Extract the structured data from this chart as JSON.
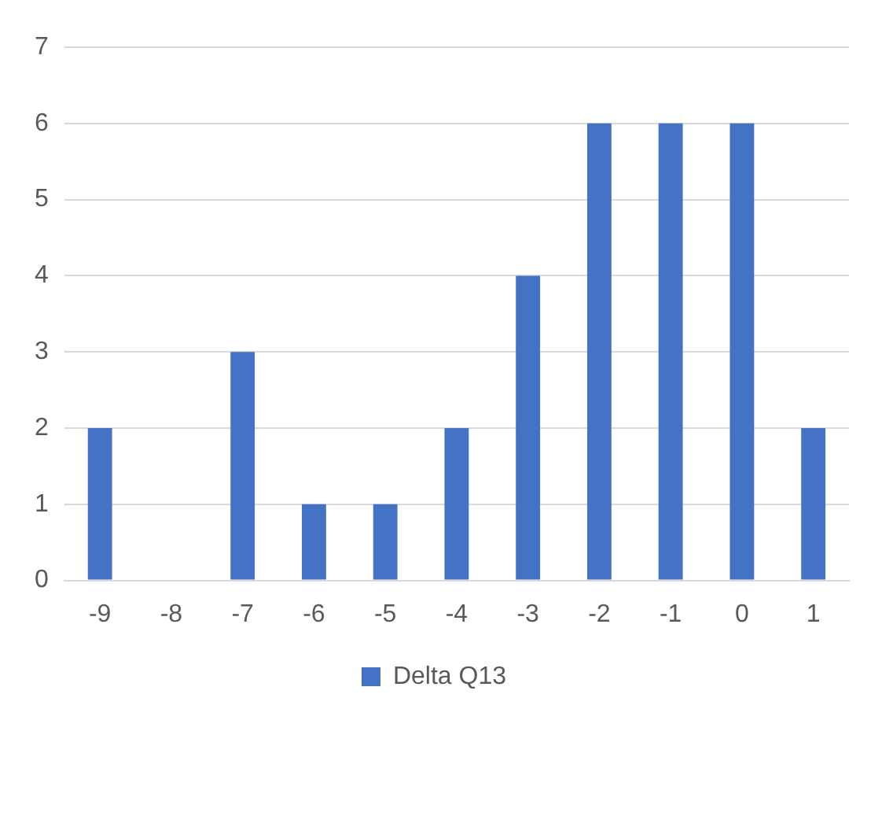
{
  "chart_data": {
    "type": "bar",
    "categories": [
      "-9",
      "-8",
      "-7",
      "-6",
      "-5",
      "-4",
      "-3",
      "-2",
      "-1",
      "0",
      "1"
    ],
    "series": [
      {
        "name": "Delta Q13",
        "color": "#4472c4",
        "values": [
          2,
          0,
          3,
          1,
          1,
          2,
          4,
          6,
          6,
          6,
          2
        ]
      }
    ],
    "ylim": [
      0,
      7
    ],
    "yticks": [
      0,
      1,
      2,
      3,
      4,
      5,
      6,
      7
    ],
    "grid": "y",
    "legend": "bottom"
  }
}
